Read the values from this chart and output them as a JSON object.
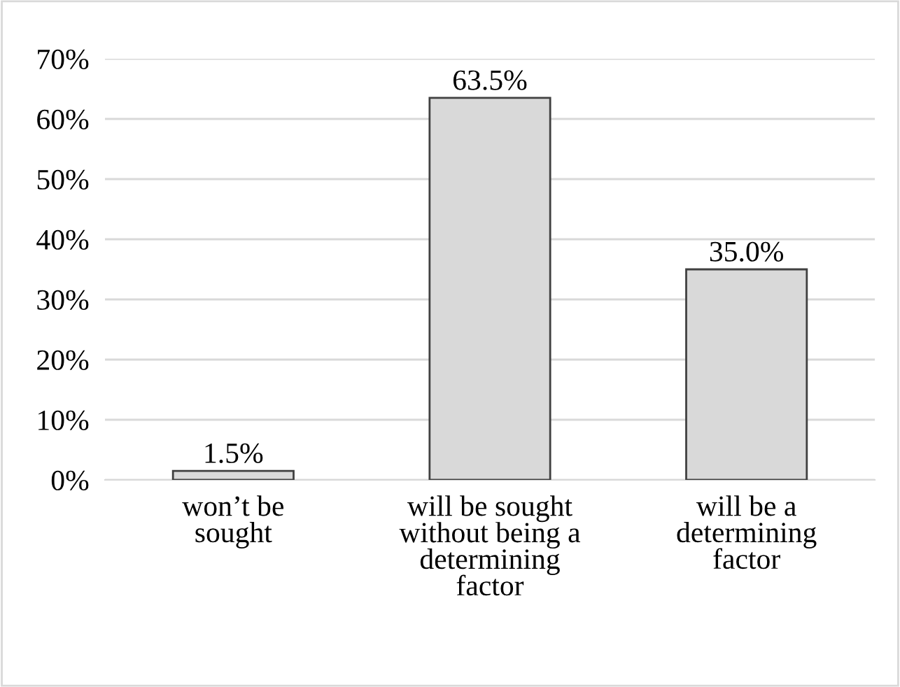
{
  "chart_data": {
    "type": "bar",
    "categories": [
      "won’t be\nsought",
      "will be sought\nwithout being a\ndetermining\nfactor",
      "will be a\ndetermining\nfactor"
    ],
    "values": [
      1.5,
      63.5,
      35.0
    ],
    "value_labels": [
      "1.5%",
      "63.5%",
      "35.0%"
    ],
    "color": "#d9d9d9",
    "ylim": [
      0,
      70
    ],
    "yticks": [
      {
        "value": 0,
        "label": "0%"
      },
      {
        "value": 10,
        "label": "10%"
      },
      {
        "value": 20,
        "label": "20%"
      },
      {
        "value": 30,
        "label": "30%"
      },
      {
        "value": 40,
        "label": "40%"
      },
      {
        "value": 50,
        "label": "50%"
      },
      {
        "value": 60,
        "label": "60%"
      },
      {
        "value": 70,
        "label": "70%"
      }
    ],
    "grid": "y"
  }
}
